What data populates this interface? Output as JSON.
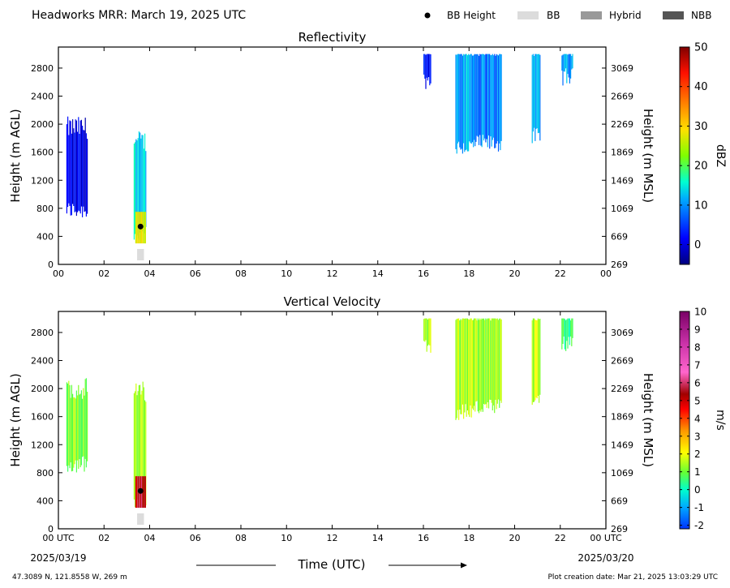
{
  "header": {
    "title": "Headworks MRR:  March 19, 2025 UTC",
    "legend": [
      {
        "label": "BB Height",
        "kind": "dot",
        "color": "#000000"
      },
      {
        "label": "BB",
        "kind": "swatch",
        "color": "#dcdcdc"
      },
      {
        "label": "Hybrid",
        "kind": "swatch",
        "color": "#999999"
      },
      {
        "label": "NBB",
        "kind": "swatch",
        "color": "#555555"
      }
    ]
  },
  "footer": {
    "location": "47.3089 N, 121.8558 W, 269 m",
    "created": "Plot creation date: Mar 21, 2025 13:03:29 UTC",
    "xlabel": "Time (UTC)",
    "start_date": "2025/03/19",
    "end_date": "2025/03/20"
  },
  "chart_data": [
    {
      "type": "heatmap",
      "title": "Reflectivity",
      "ylabel": "Height (m AGL)",
      "y2label": "Height (m MSL)",
      "xlim": [
        0,
        24
      ],
      "ylim": [
        0,
        3100
      ],
      "x_ticks": [
        "00",
        "02",
        "04",
        "06",
        "08",
        "10",
        "12",
        "14",
        "16",
        "18",
        "20",
        "22",
        "00"
      ],
      "y_ticks": [
        0,
        400,
        800,
        1200,
        1600,
        2000,
        2400,
        2800
      ],
      "y2_ticks": [
        "269",
        "669",
        "1069",
        "1469",
        "1869",
        "2269",
        "2669",
        "3069"
      ],
      "colorbar": {
        "label": "dBZ",
        "min": -5,
        "max": 50,
        "ticks": [
          0,
          10,
          20,
          30,
          40,
          50
        ]
      },
      "bright_band": {
        "time": 3.6,
        "height": 540
      },
      "bb_class_marks": [
        {
          "start": 3.45,
          "end": 3.75,
          "class": "BB"
        }
      ],
      "echoes": [
        {
          "start": 0.35,
          "end": 1.25,
          "bottom": 650,
          "top": 1950,
          "value": 1
        },
        {
          "start": 3.3,
          "end": 3.85,
          "bottom": 300,
          "top": 1750,
          "value": 14,
          "core_value": 28,
          "core_bottom": 300,
          "core_top": 750
        },
        {
          "start": 16.0,
          "end": 16.3,
          "bottom": 2500,
          "top": 3000,
          "value": 2
        },
        {
          "start": 17.4,
          "end": 18.2,
          "bottom": 1550,
          "top": 3000,
          "value": 12
        },
        {
          "start": 18.2,
          "end": 19.4,
          "bottom": 1600,
          "top": 3000,
          "value": 9
        },
        {
          "start": 20.75,
          "end": 21.1,
          "bottom": 1700,
          "top": 3000,
          "value": 12
        },
        {
          "start": 22.05,
          "end": 22.55,
          "bottom": 2550,
          "top": 3000,
          "value": 11
        }
      ]
    },
    {
      "type": "heatmap",
      "title": "Vertical Velocity",
      "ylabel": "Height (m AGL)",
      "y2label": "Height (m MSL)",
      "xlim": [
        0,
        24
      ],
      "ylim": [
        0,
        3100
      ],
      "x_ticks": [
        "00 UTC",
        "02",
        "04",
        "06",
        "08",
        "10",
        "12",
        "14",
        "16",
        "18",
        "20",
        "22",
        "00 UTC"
      ],
      "y_ticks": [
        0,
        400,
        800,
        1200,
        1600,
        2000,
        2400,
        2800
      ],
      "y2_ticks": [
        "269",
        "669",
        "1069",
        "1469",
        "1869",
        "2269",
        "2669",
        "3069"
      ],
      "colorbar": {
        "label": "m/s",
        "min": -2.2,
        "max": 10,
        "ticks": [
          -2,
          -1,
          0,
          1,
          2,
          3,
          4,
          5,
          6,
          7,
          8,
          9,
          10
        ]
      },
      "bright_band": {
        "time": 3.6,
        "height": 540
      },
      "bb_class_marks": [
        {
          "start": 3.45,
          "end": 3.75,
          "class": "BB"
        }
      ],
      "echoes": [
        {
          "start": 0.35,
          "end": 1.25,
          "bottom": 800,
          "top": 2000,
          "value": 1.2
        },
        {
          "start": 3.3,
          "end": 3.85,
          "bottom": 300,
          "top": 1950,
          "value": 1.3,
          "core_value": 5.5,
          "core_bottom": 300,
          "core_top": 750
        },
        {
          "start": 16.0,
          "end": 16.3,
          "bottom": 2500,
          "top": 3000,
          "value": 1.4
        },
        {
          "start": 17.4,
          "end": 18.2,
          "bottom": 1550,
          "top": 3000,
          "value": 1.5
        },
        {
          "start": 18.2,
          "end": 19.4,
          "bottom": 1600,
          "top": 3000,
          "value": 1.3
        },
        {
          "start": 20.75,
          "end": 21.1,
          "bottom": 1700,
          "top": 3000,
          "value": 1.6
        },
        {
          "start": 22.05,
          "end": 22.55,
          "bottom": 2500,
          "top": 3000,
          "value": 0.4
        }
      ]
    }
  ]
}
